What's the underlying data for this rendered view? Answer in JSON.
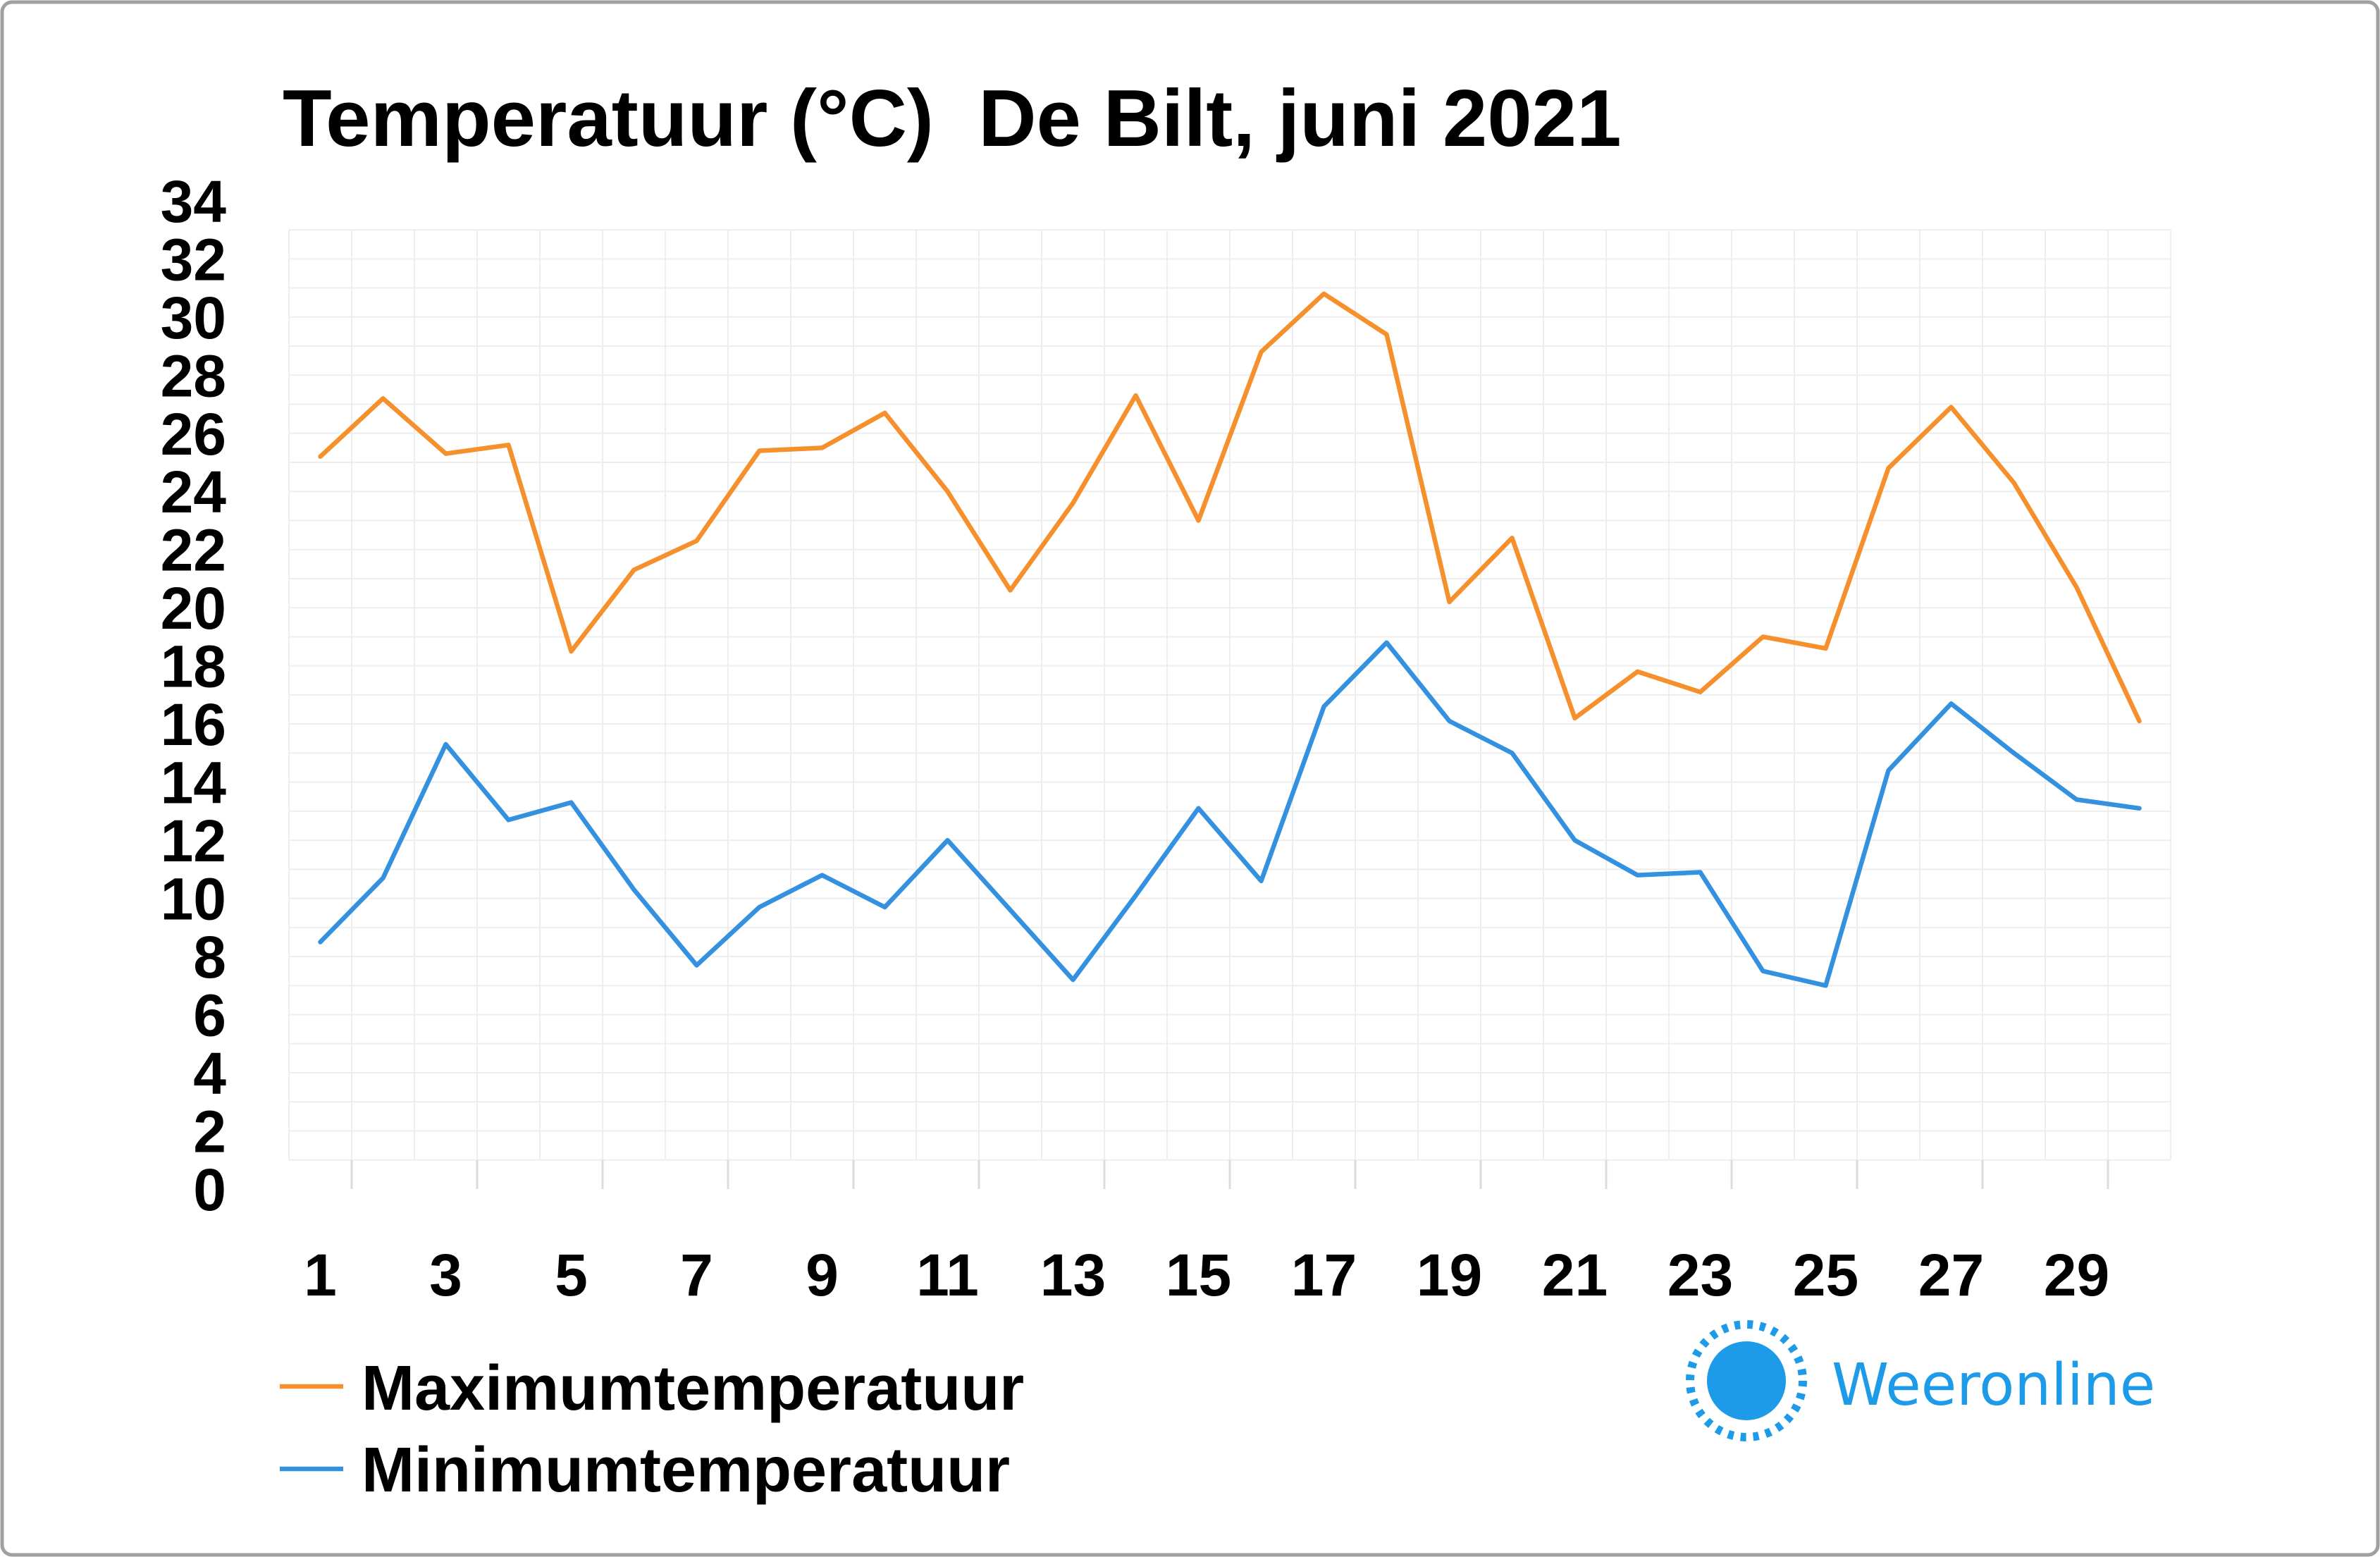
{
  "chart_data": {
    "type": "line",
    "title": "Temperatuur (°C)  De Bilt, juni 2021",
    "xlabel": "",
    "ylabel": "",
    "x": [
      1,
      2,
      3,
      4,
      5,
      6,
      7,
      8,
      9,
      10,
      11,
      12,
      13,
      14,
      15,
      16,
      17,
      18,
      19,
      20,
      21,
      22,
      23,
      24,
      25,
      26,
      27,
      28,
      29,
      30
    ],
    "x_ticks": [
      1,
      3,
      5,
      7,
      9,
      11,
      13,
      15,
      17,
      19,
      21,
      23,
      25,
      27,
      29
    ],
    "y_ticks": [
      0,
      2,
      4,
      6,
      8,
      10,
      12,
      14,
      16,
      18,
      20,
      22,
      24,
      26,
      28,
      30,
      32,
      34
    ],
    "ylim": [
      0,
      34
    ],
    "grid": true,
    "legend_position": "bottom-left",
    "series": [
      {
        "name": "Maximumtemperatuur",
        "color": "#f5902c",
        "values": [
          25.2,
          27.2,
          25.3,
          25.6,
          18.5,
          21.3,
          22.3,
          25.4,
          25.5,
          26.7,
          24.0,
          20.6,
          23.6,
          27.3,
          23.0,
          28.8,
          30.8,
          29.4,
          20.2,
          22.4,
          16.2,
          17.8,
          17.1,
          19.0,
          18.6,
          24.8,
          26.9,
          24.3,
          20.7,
          16.1
        ]
      },
      {
        "name": "Minimumtemperatuur",
        "color": "#3391df",
        "values": [
          8.5,
          10.7,
          15.3,
          12.7,
          13.3,
          10.3,
          7.7,
          9.7,
          10.8,
          9.7,
          12.0,
          9.6,
          7.2,
          10.1,
          13.1,
          10.6,
          16.6,
          18.8,
          16.1,
          15.0,
          12.0,
          10.8,
          10.9,
          7.5,
          7.0,
          14.4,
          16.7,
          15.0,
          13.4,
          13.1
        ]
      }
    ]
  },
  "branding": {
    "logo_text": "Weeronline",
    "logo_icon": "sun-icon",
    "color": "#1e9be8"
  },
  "colors": {
    "border": "#a0a0a0",
    "grid": "#eeeeee",
    "tick": "#dcdcdc",
    "text": "#000000",
    "background": "#ffffff"
  }
}
